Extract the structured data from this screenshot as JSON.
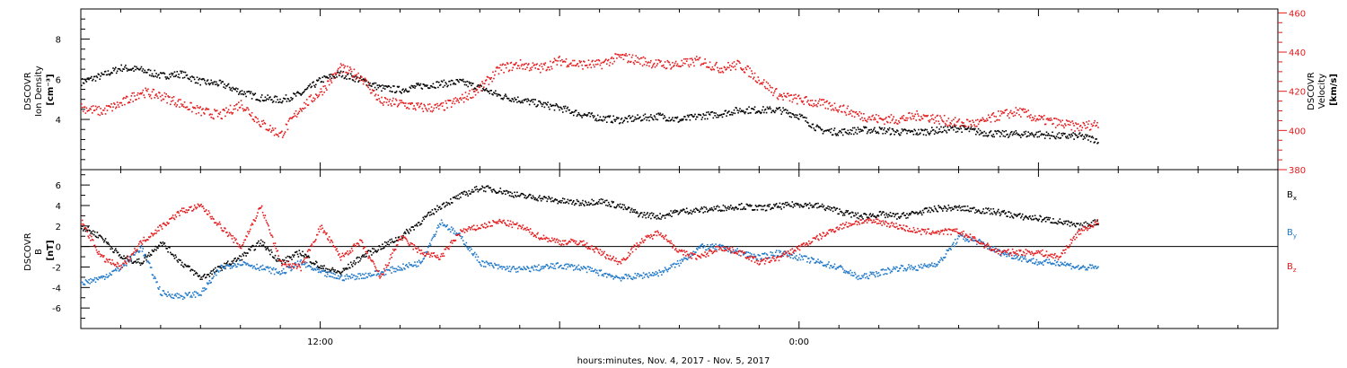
{
  "chart_data": [
    {
      "type": "scatter",
      "panel": "top",
      "xlabel": "hours:minutes, Nov.  4, 2017 - Nov.  5, 2017",
      "x_tick_labels": [
        "12:00",
        "0:00"
      ],
      "x_range_hours": [
        6.0,
        36.0
      ],
      "left_axis": {
        "label_lines": [
          "DSCOVR",
          "Ion Density",
          "[cm⁻³]"
        ],
        "ticks": [
          4,
          6,
          8
        ],
        "range": [
          1.5,
          9.5
        ],
        "color": "#000000"
      },
      "right_axis": {
        "label_lines": [
          "DSCOVR",
          "Velocity",
          "[km/s]"
        ],
        "ticks": [
          380,
          400,
          420,
          440,
          460
        ],
        "range": [
          380,
          462
        ],
        "color": "#e41a1c"
      },
      "series": [
        {
          "axis": "left",
          "color": "#000000",
          "points": [
            [
              6.0,
              5.9
            ],
            [
              6.5,
              6.2
            ],
            [
              7.0,
              6.6
            ],
            [
              7.5,
              6.5
            ],
            [
              8.0,
              6.2
            ],
            [
              8.5,
              6.3
            ],
            [
              9.0,
              5.9
            ],
            [
              9.5,
              5.8
            ],
            [
              10.0,
              5.4
            ],
            [
              10.5,
              5.1
            ],
            [
              11.0,
              5.0
            ],
            [
              11.5,
              5.3
            ],
            [
              12.0,
              6.0
            ],
            [
              12.5,
              6.3
            ],
            [
              13.0,
              6.0
            ],
            [
              13.5,
              5.6
            ],
            [
              14.0,
              5.5
            ],
            [
              14.5,
              5.7
            ],
            [
              15.0,
              5.8
            ],
            [
              15.5,
              5.9
            ],
            [
              16.0,
              5.6
            ],
            [
              16.5,
              5.2
            ],
            [
              17.0,
              5.0
            ],
            [
              17.5,
              4.8
            ],
            [
              18.0,
              4.6
            ],
            [
              18.5,
              4.3
            ],
            [
              19.0,
              4.1
            ],
            [
              19.5,
              4.0
            ],
            [
              20.0,
              4.1
            ],
            [
              20.5,
              4.2
            ],
            [
              21.0,
              4.0
            ],
            [
              21.5,
              4.2
            ],
            [
              22.0,
              4.3
            ],
            [
              22.5,
              4.5
            ],
            [
              23.0,
              4.5
            ],
            [
              23.5,
              4.5
            ],
            [
              24.0,
              4.2
            ],
            [
              24.5,
              3.5
            ],
            [
              25.0,
              3.4
            ],
            [
              25.5,
              3.5
            ],
            [
              26.0,
              3.5
            ],
            [
              26.5,
              3.4
            ],
            [
              27.0,
              3.4
            ],
            [
              27.5,
              3.5
            ],
            [
              28.0,
              3.6
            ],
            [
              28.5,
              3.4
            ],
            [
              29.0,
              3.3
            ],
            [
              29.5,
              3.3
            ],
            [
              30.0,
              3.3
            ],
            [
              30.5,
              3.2
            ],
            [
              31.0,
              3.2
            ],
            [
              31.5,
              3.0
            ]
          ]
        },
        {
          "axis": "right",
          "color": "#e41a1c",
          "points": [
            [
              6.0,
              412
            ],
            [
              6.5,
              410
            ],
            [
              7.0,
              414
            ],
            [
              7.5,
              420
            ],
            [
              8.0,
              418
            ],
            [
              8.5,
              414
            ],
            [
              9.0,
              410
            ],
            [
              9.5,
              408
            ],
            [
              10.0,
              414
            ],
            [
              10.5,
              404
            ],
            [
              11.0,
              398
            ],
            [
              11.5,
              412
            ],
            [
              12.0,
              420
            ],
            [
              12.5,
              432
            ],
            [
              13.0,
              428
            ],
            [
              13.5,
              415
            ],
            [
              14.0,
              414
            ],
            [
              14.5,
              412
            ],
            [
              15.0,
              412
            ],
            [
              15.5,
              416
            ],
            [
              16.0,
              422
            ],
            [
              16.5,
              432
            ],
            [
              17.0,
              434
            ],
            [
              17.5,
              432
            ],
            [
              18.0,
              436
            ],
            [
              18.5,
              434
            ],
            [
              19.0,
              434
            ],
            [
              19.5,
              438
            ],
            [
              20.0,
              436
            ],
            [
              20.5,
              434
            ],
            [
              21.0,
              434
            ],
            [
              21.5,
              436
            ],
            [
              22.0,
              432
            ],
            [
              22.5,
              434
            ],
            [
              23.0,
              426
            ],
            [
              23.5,
              418
            ],
            [
              24.0,
              416
            ],
            [
              24.5,
              414
            ],
            [
              25.0,
              412
            ],
            [
              25.5,
              408
            ],
            [
              26.0,
              406
            ],
            [
              26.5,
              406
            ],
            [
              27.0,
              408
            ],
            [
              27.5,
              406
            ],
            [
              28.0,
              404
            ],
            [
              28.5,
              404
            ],
            [
              29.0,
              408
            ],
            [
              29.5,
              410
            ],
            [
              30.0,
              406
            ],
            [
              30.5,
              404
            ],
            [
              31.0,
              402
            ],
            [
              31.5,
              404
            ]
          ]
        }
      ]
    },
    {
      "type": "scatter",
      "panel": "bottom",
      "x_range_hours": [
        6.0,
        36.0
      ],
      "left_axis": {
        "label_lines": [
          "DSCOVR",
          "B",
          "[nT]"
        ],
        "ticks": [
          -6,
          -4,
          -2,
          0,
          2,
          4,
          6
        ],
        "range": [
          -8,
          7.5
        ],
        "color": "#000000"
      },
      "zero_line": true,
      "legend": [
        {
          "name": "Bx",
          "base": "B",
          "sub": "x",
          "color": "#000000"
        },
        {
          "name": "By",
          "base": "B",
          "sub": "y",
          "color": "#1f78c8"
        },
        {
          "name": "Bz",
          "base": "B",
          "sub": "z",
          "color": "#e41a1c"
        }
      ],
      "series": [
        {
          "name": "Bx",
          "color": "#000000",
          "points": [
            [
              6.0,
              2.0
            ],
            [
              6.5,
              1.0
            ],
            [
              7.0,
              -1.0
            ],
            [
              7.5,
              -1.5
            ],
            [
              8.0,
              0.5
            ],
            [
              8.5,
              -1.5
            ],
            [
              9.0,
              -3.0
            ],
            [
              9.5,
              -2.0
            ],
            [
              10.0,
              -1.0
            ],
            [
              10.5,
              0.5
            ],
            [
              11.0,
              -1.5
            ],
            [
              11.5,
              -0.5
            ],
            [
              12.0,
              -2.0
            ],
            [
              12.5,
              -2.5
            ],
            [
              13.0,
              -1.0
            ],
            [
              13.5,
              0.0
            ],
            [
              14.0,
              1.0
            ],
            [
              14.5,
              2.5
            ],
            [
              15.0,
              4.0
            ],
            [
              15.5,
              5.0
            ],
            [
              16.0,
              5.8
            ],
            [
              16.5,
              5.5
            ],
            [
              17.0,
              5.0
            ],
            [
              17.5,
              4.8
            ],
            [
              18.0,
              4.5
            ],
            [
              18.5,
              4.3
            ],
            [
              19.0,
              4.5
            ],
            [
              19.5,
              4.0
            ],
            [
              20.0,
              3.2
            ],
            [
              20.5,
              3.0
            ],
            [
              21.0,
              3.5
            ],
            [
              21.5,
              3.6
            ],
            [
              22.0,
              3.8
            ],
            [
              22.5,
              4.0
            ],
            [
              23.0,
              3.8
            ],
            [
              23.5,
              4.0
            ],
            [
              24.0,
              4.2
            ],
            [
              24.5,
              4.0
            ],
            [
              25.0,
              3.5
            ],
            [
              25.5,
              3.0
            ],
            [
              26.0,
              3.2
            ],
            [
              26.5,
              3.0
            ],
            [
              27.0,
              3.4
            ],
            [
              27.5,
              3.8
            ],
            [
              28.0,
              3.8
            ],
            [
              28.5,
              3.6
            ],
            [
              29.0,
              3.4
            ],
            [
              29.5,
              3.0
            ],
            [
              30.0,
              2.8
            ],
            [
              30.5,
              2.5
            ],
            [
              31.0,
              2.0
            ],
            [
              31.5,
              2.5
            ]
          ]
        },
        {
          "name": "By",
          "color": "#1f78c8",
          "points": [
            [
              6.0,
              -3.5
            ],
            [
              6.5,
              -3.0
            ],
            [
              7.0,
              -2.0
            ],
            [
              7.5,
              0.0
            ],
            [
              8.0,
              -4.5
            ],
            [
              8.5,
              -4.8
            ],
            [
              9.0,
              -4.5
            ],
            [
              9.5,
              -2.0
            ],
            [
              10.0,
              -1.5
            ],
            [
              10.5,
              -2.0
            ],
            [
              11.0,
              -2.5
            ],
            [
              11.5,
              -1.5
            ],
            [
              12.0,
              -2.5
            ],
            [
              12.5,
              -3.0
            ],
            [
              13.0,
              -2.8
            ],
            [
              13.5,
              -2.5
            ],
            [
              14.0,
              -2.0
            ],
            [
              14.5,
              -1.5
            ],
            [
              15.0,
              2.5
            ],
            [
              15.5,
              1.0
            ],
            [
              16.0,
              -1.5
            ],
            [
              16.5,
              -2.0
            ],
            [
              17.0,
              -2.2
            ],
            [
              17.5,
              -2.0
            ],
            [
              18.0,
              -1.8
            ],
            [
              18.5,
              -2.0
            ],
            [
              19.0,
              -2.5
            ],
            [
              19.5,
              -3.0
            ],
            [
              20.0,
              -2.8
            ],
            [
              20.5,
              -2.5
            ],
            [
              21.0,
              -1.5
            ],
            [
              21.5,
              0.0
            ],
            [
              22.0,
              0.0
            ],
            [
              22.5,
              -0.5
            ],
            [
              23.0,
              -1.0
            ],
            [
              23.5,
              -0.5
            ],
            [
              24.0,
              -1.0
            ],
            [
              24.5,
              -1.5
            ],
            [
              25.0,
              -2.0
            ],
            [
              25.5,
              -3.0
            ],
            [
              26.0,
              -2.5
            ],
            [
              26.5,
              -2.0
            ],
            [
              27.0,
              -2.0
            ],
            [
              27.5,
              -1.5
            ],
            [
              28.0,
              1.0
            ],
            [
              28.5,
              0.5
            ],
            [
              29.0,
              -0.5
            ],
            [
              29.5,
              -1.0
            ],
            [
              30.0,
              -1.5
            ],
            [
              30.5,
              -1.5
            ],
            [
              31.0,
              -2.0
            ],
            [
              31.5,
              -2.0
            ]
          ]
        },
        {
          "name": "Bz",
          "color": "#e41a1c",
          "points": [
            [
              6.0,
              2.5
            ],
            [
              6.5,
              -1.0
            ],
            [
              7.0,
              -2.0
            ],
            [
              7.5,
              0.5
            ],
            [
              8.0,
              2.0
            ],
            [
              8.5,
              3.5
            ],
            [
              9.0,
              4.0
            ],
            [
              9.5,
              2.0
            ],
            [
              10.0,
              0.0
            ],
            [
              10.5,
              4.0
            ],
            [
              11.0,
              -1.5
            ],
            [
              11.5,
              -2.0
            ],
            [
              12.0,
              2.0
            ],
            [
              12.5,
              -1.0
            ],
            [
              13.0,
              0.5
            ],
            [
              13.5,
              -3.0
            ],
            [
              14.0,
              1.0
            ],
            [
              14.5,
              -0.5
            ],
            [
              15.0,
              -1.0
            ],
            [
              15.5,
              1.5
            ],
            [
              16.0,
              2.0
            ],
            [
              16.5,
              2.5
            ],
            [
              17.0,
              2.0
            ],
            [
              17.5,
              1.0
            ],
            [
              18.0,
              0.5
            ],
            [
              18.5,
              0.5
            ],
            [
              19.0,
              -0.5
            ],
            [
              19.5,
              -1.5
            ],
            [
              20.0,
              0.5
            ],
            [
              20.5,
              1.5
            ],
            [
              21.0,
              -0.5
            ],
            [
              21.5,
              -1.0
            ],
            [
              22.0,
              0.0
            ],
            [
              22.5,
              -0.5
            ],
            [
              23.0,
              -1.5
            ],
            [
              23.5,
              -1.0
            ],
            [
              24.0,
              0.0
            ],
            [
              24.5,
              1.0
            ],
            [
              25.0,
              2.0
            ],
            [
              25.5,
              2.5
            ],
            [
              26.0,
              2.5
            ],
            [
              26.5,
              2.0
            ],
            [
              27.0,
              1.5
            ],
            [
              27.5,
              1.5
            ],
            [
              28.0,
              1.5
            ],
            [
              28.5,
              0.5
            ],
            [
              29.0,
              -0.5
            ],
            [
              29.5,
              -0.5
            ],
            [
              30.0,
              -0.5
            ],
            [
              30.5,
              -1.0
            ],
            [
              31.0,
              1.5
            ],
            [
              31.5,
              2.5
            ]
          ]
        }
      ]
    }
  ]
}
